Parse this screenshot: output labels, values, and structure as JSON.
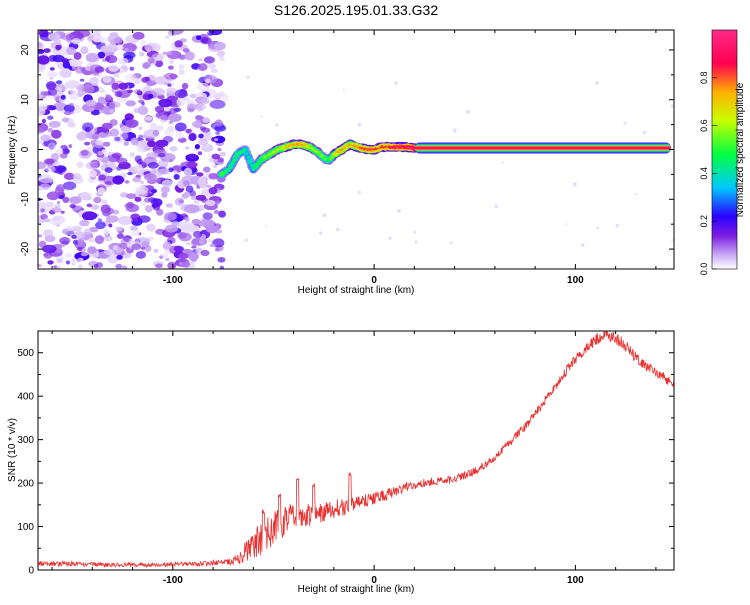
{
  "figure_title": "S126.2025.195.01.33.G32",
  "colorbar": {
    "label": "Normalized spectral amplitude",
    "ticks": [
      "0.0",
      "0.2",
      "0.4",
      "0.6",
      "0.8"
    ],
    "tick_values": [
      0.0,
      0.2,
      0.4,
      0.6,
      0.8
    ],
    "range": [
      0,
      1
    ],
    "colors": [
      "#ffffff",
      "#c9a8f5",
      "#7a1de0",
      "#2b00ff",
      "#00c8ff",
      "#00ff40",
      "#c8ff00",
      "#ffb000",
      "#ff0050",
      "#ff2a8a"
    ]
  },
  "chart_data": [
    {
      "type": "heatmap",
      "title": "",
      "xlabel": "Height of straight line (km)",
      "ylabel": "Frequency (Hz)",
      "xlim": [
        -167,
        149
      ],
      "ylim": [
        -24,
        24
      ],
      "xticks": [
        -100,
        0,
        100
      ],
      "xtick_labels": [
        "-100",
        "0",
        "100"
      ],
      "yticks": [
        -20,
        -10,
        0,
        10,
        20
      ],
      "ytick_labels": [
        "-20",
        "-10",
        "0",
        "10",
        "20"
      ],
      "noise_region_x": [
        -167,
        -75
      ],
      "ridge": {
        "x": [
          -76,
          -72,
          -68,
          -64,
          -60,
          -56,
          -52,
          -48,
          -44,
          -40,
          -36,
          -32,
          -28,
          -24,
          -22,
          -20,
          -16,
          -12,
          -8,
          -4,
          0,
          4,
          8,
          12,
          16,
          20,
          149
        ],
        "y": [
          -5,
          -4,
          -1,
          0,
          -4,
          -2,
          -1,
          0,
          0.5,
          1,
          1,
          0.5,
          -0.5,
          -2,
          -2,
          -1,
          0,
          1,
          0.5,
          0,
          0,
          0.5,
          0.5,
          0.5,
          0.5,
          0.3,
          0.3
        ],
        "amplitude": [
          0.55,
          0.45,
          0.5,
          0.45,
          0.45,
          0.55,
          0.6,
          0.65,
          0.7,
          0.75,
          0.8,
          0.65,
          0.6,
          0.55,
          0.5,
          0.7,
          0.8,
          0.75,
          0.8,
          0.85,
          0.85,
          0.85,
          0.9,
          0.95,
          0.95,
          1.0,
          1.0
        ]
      }
    },
    {
      "type": "line",
      "title": "",
      "xlabel": "Height of straight line (km)",
      "ylabel": "SNR (10 * v/v)",
      "xlim": [
        -167,
        149
      ],
      "ylim": [
        0,
        550
      ],
      "xticks": [
        -100,
        0,
        100
      ],
      "xtick_labels": [
        "-100",
        "0",
        "100"
      ],
      "yticks": [
        0,
        100,
        200,
        300,
        400,
        500
      ],
      "ytick_labels": [
        "0",
        "100",
        "200",
        "300",
        "400",
        "500"
      ],
      "color": "#e8302f",
      "series": [
        {
          "x": [
            -167,
            -150,
            -130,
            -110,
            -90,
            -80,
            -70,
            -65,
            -60,
            -55,
            -50,
            -45,
            -40,
            -35,
            -30,
            -25,
            -20,
            -15,
            -10,
            -5,
            0,
            5,
            10,
            15,
            20,
            25,
            30,
            35,
            40,
            45,
            50,
            55,
            60,
            65,
            70,
            75,
            80,
            85,
            90,
            95,
            100,
            105,
            110,
            115,
            120,
            125,
            130,
            135,
            140,
            145,
            149
          ],
          "y": [
            15,
            14,
            12,
            12,
            14,
            16,
            20,
            35,
            60,
            75,
            95,
            110,
            120,
            125,
            130,
            135,
            140,
            145,
            150,
            160,
            165,
            172,
            180,
            188,
            195,
            200,
            205,
            205,
            210,
            218,
            228,
            240,
            260,
            282,
            305,
            330,
            360,
            390,
            420,
            455,
            485,
            510,
            530,
            540,
            535,
            515,
            490,
            470,
            455,
            440,
            430
          ],
          "noise": [
            6,
            6,
            5,
            5,
            5,
            6,
            8,
            22,
            35,
            40,
            40,
            38,
            32,
            28,
            28,
            25,
            22,
            20,
            18,
            16,
            14,
            13,
            12,
            12,
            10,
            10,
            9,
            9,
            9,
            9,
            9,
            9,
            9,
            9,
            9,
            10,
            10,
            10,
            10,
            12,
            12,
            12,
            14,
            14,
            14,
            14,
            14,
            12,
            12,
            12,
            12
          ],
          "peaks": [
            {
              "x": -55,
              "y": 140
            },
            {
              "x": -47,
              "y": 175
            },
            {
              "x": -38,
              "y": 215
            },
            {
              "x": -30,
              "y": 200
            },
            {
              "x": -12,
              "y": 225
            }
          ]
        }
      ]
    }
  ]
}
